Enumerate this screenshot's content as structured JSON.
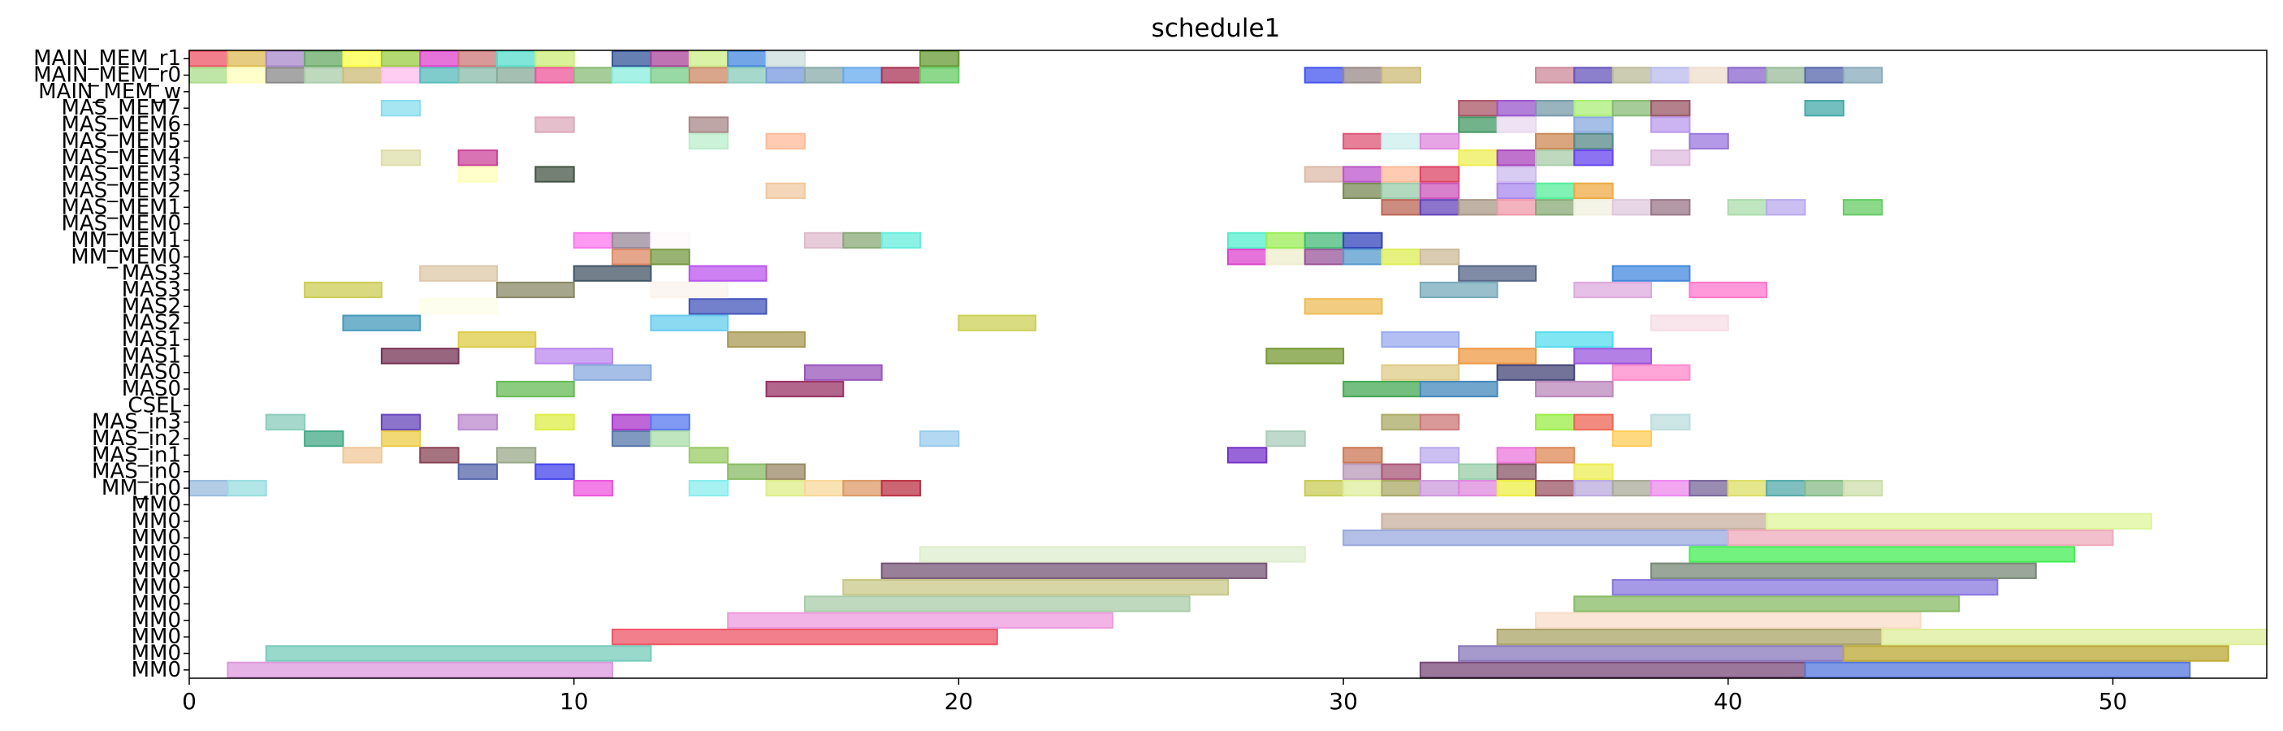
{
  "chart_data": {
    "type": "gantt",
    "title": "schedule1",
    "xlabel": "",
    "ylabel": "",
    "xlim": [
      0,
      54
    ],
    "xticks": [
      0,
      10,
      20,
      30,
      40,
      50
    ],
    "grid": false,
    "legend": "none",
    "rows": [
      "MM0",
      "MM0",
      "MM0",
      "MM0",
      "MM0",
      "MM0",
      "MM0",
      "MM0",
      "MM0",
      "MM0",
      "MM0",
      "MM_in0",
      "MAS_in0",
      "MAS_in1",
      "MAS_in2",
      "MAS_in3",
      "CSEL",
      "MAS0",
      "MAS0",
      "MAS1",
      "MAS1",
      "MAS2",
      "MAS2",
      "MAS3",
      "MAS3",
      "MM_MEM0",
      "MM_MEM1",
      "MAS_MEM0",
      "MAS_MEM1",
      "MAS_MEM2",
      "MAS_MEM3",
      "MAS_MEM4",
      "MAS_MEM5",
      "MAS_MEM6",
      "MAS_MEM7",
      "MAIN_MEM_w",
      "MAIN_MEM_r0",
      "MAIN_MEM_r1"
    ],
    "tasks": [
      [
        [
          1,
          11,
          "#dd99dd"
        ],
        [
          32,
          42,
          "#7a4a7a"
        ],
        [
          42,
          52,
          "#5577dd"
        ]
      ],
      [
        [
          2,
          12,
          "#77ccbb"
        ],
        [
          33,
          43,
          "#8877bb"
        ],
        [
          43,
          53,
          "#bba833"
        ]
      ],
      [
        [
          11,
          21,
          "#ee5566"
        ],
        [
          34,
          44,
          "#aaa466"
        ],
        [
          44,
          54,
          "#ddee99"
        ]
      ],
      [
        [
          14,
          24,
          "#ee99dd"
        ],
        [
          35,
          45,
          "#f8dcc8"
        ]
      ],
      [
        [
          16,
          26,
          "#aaccaa"
        ],
        [
          36,
          46,
          "#88bb66"
        ]
      ],
      [
        [
          17,
          27,
          "#c8c888"
        ],
        [
          37,
          47,
          "#8877dd"
        ]
      ],
      [
        [
          18,
          28,
          "#775577"
        ],
        [
          38,
          48,
          "#778877"
        ]
      ],
      [
        [
          19,
          29,
          "#ddeecc"
        ],
        [
          39,
          49,
          "#44ee55"
        ]
      ],
      [
        [
          30,
          40,
          "#99aadd"
        ],
        [
          40,
          50,
          "#eeaabb"
        ]
      ],
      [
        [
          31,
          41,
          "#c8b0a0"
        ],
        [
          41,
          51,
          "#ddf599"
        ]
      ],
      [],
      [
        [
          0,
          1,
          "#99bbdd"
        ],
        [
          1,
          2,
          "#99dddd"
        ],
        [
          10,
          11,
          "#ee55dd"
        ],
        [
          13,
          14,
          "#88eeee"
        ],
        [
          15,
          16,
          "#ddee88"
        ],
        [
          16,
          17,
          "#f8d899"
        ],
        [
          17,
          18,
          "#dd9966"
        ],
        [
          18,
          19,
          "#bb3344"
        ],
        [
          29,
          30,
          "#c8cc55"
        ],
        [
          30,
          31,
          "#ddee99"
        ],
        [
          31,
          32,
          "#aaaa66"
        ],
        [
          32,
          33,
          "#cc99dd"
        ],
        [
          33,
          34,
          "#dd88dd"
        ],
        [
          34,
          35,
          "#eeee44"
        ],
        [
          35,
          36,
          "#995566"
        ],
        [
          36,
          37,
          "#bbaadd"
        ],
        [
          37,
          38,
          "#aaaa99"
        ],
        [
          38,
          39,
          "#ee88ee"
        ],
        [
          39,
          40,
          "#776699"
        ],
        [
          40,
          41,
          "#dddd66"
        ],
        [
          41,
          42,
          "#55aaaa"
        ],
        [
          42,
          43,
          "#88bb88"
        ],
        [
          43,
          44,
          "#ccddaa"
        ]
      ],
      [
        [
          7,
          8,
          "#5566aa"
        ],
        [
          9,
          10,
          "#4444ee"
        ],
        [
          14,
          15,
          "#88bb66"
        ],
        [
          15,
          16,
          "#998866"
        ],
        [
          30,
          31,
          "#bb99bb"
        ],
        [
          31,
          32,
          "#aa5577"
        ],
        [
          33,
          34,
          "#99ccaa"
        ],
        [
          34,
          35,
          "#885566"
        ],
        [
          36,
          37,
          "#eeee55"
        ]
      ],
      [
        [
          4,
          5,
          "#f0c899"
        ],
        [
          6,
          7,
          "#884455"
        ],
        [
          8,
          9,
          "#99aa88"
        ],
        [
          13,
          14,
          "#99cc66"
        ],
        [
          27,
          28,
          "#7733cc"
        ],
        [
          30,
          31,
          "#cc7755"
        ],
        [
          32,
          33,
          "#bbaaee"
        ],
        [
          34,
          35,
          "#ee77dd"
        ],
        [
          35,
          36,
          "#dd8855"
        ]
      ],
      [
        [
          3,
          4,
          "#44aa88"
        ],
        [
          5,
          6,
          "#eecc44"
        ],
        [
          11,
          12,
          "#5577aa"
        ],
        [
          12,
          13,
          "#aaddaa"
        ],
        [
          19,
          20,
          "#99ccee"
        ],
        [
          28,
          29,
          "#aaccbb"
        ],
        [
          37,
          38,
          "#ffcc55"
        ]
      ],
      [
        [
          2,
          3,
          "#88ccbb"
        ],
        [
          5,
          6,
          "#6644bb"
        ],
        [
          7,
          8,
          "#bb88cc"
        ],
        [
          9,
          10,
          "#ddee44"
        ],
        [
          11,
          12,
          "#aa33cc"
        ],
        [
          12,
          13,
          "#5577ee"
        ],
        [
          31,
          32,
          "#aaaa66"
        ],
        [
          32,
          33,
          "#cc7777"
        ],
        [
          35,
          36,
          "#99ee44"
        ],
        [
          36,
          37,
          "#ee6655"
        ],
        [
          38,
          39,
          "#bbdddd"
        ]
      ],
      [],
      [
        [
          8,
          10,
          "#66bb55"
        ],
        [
          15,
          17,
          "#993366"
        ],
        [
          30,
          32,
          "#44aa55"
        ],
        [
          32,
          34,
          "#4488bb"
        ],
        [
          35,
          37,
          "#bb88bb"
        ]
      ],
      [
        [
          10,
          12,
          "#88aadd"
        ],
        [
          16,
          18,
          "#9955bb"
        ],
        [
          31,
          33,
          "#ddcc88"
        ],
        [
          34,
          36,
          "#444477"
        ],
        [
          37,
          39,
          "#ff88cc"
        ]
      ],
      [
        [
          5,
          7,
          "#773355"
        ],
        [
          9,
          11,
          "#bb88ee"
        ],
        [
          28,
          30,
          "#779933"
        ],
        [
          33,
          35,
          "#ee9944"
        ],
        [
          36,
          38,
          "#9955dd"
        ]
      ],
      [
        [
          7,
          9,
          "#ddcc44"
        ],
        [
          14,
          16,
          "#aa9955"
        ],
        [
          31,
          33,
          "#99aaee"
        ],
        [
          35,
          37,
          "#55ddee"
        ]
      ],
      [
        [
          4,
          6,
          "#4499bb"
        ],
        [
          12,
          14,
          "#66ccee"
        ],
        [
          20,
          22,
          "#ccd055"
        ],
        [
          38,
          40,
          "#f5dde5"
        ]
      ],
      [
        [
          6,
          8,
          "#fefee8"
        ],
        [
          13,
          15,
          "#4455bb"
        ],
        [
          29,
          31,
          "#eebb55"
        ]
      ],
      [
        [
          3,
          5,
          "#cccc55"
        ],
        [
          8,
          10,
          "#888866"
        ],
        [
          12,
          14,
          "#faf3ec"
        ],
        [
          32,
          34,
          "#77aabb"
        ],
        [
          36,
          38,
          "#ddaadd"
        ],
        [
          39,
          41,
          "#ff77cc"
        ]
      ],
      [
        [
          6,
          8,
          "#ddc8a8"
        ],
        [
          10,
          12,
          "#445566"
        ],
        [
          13,
          15,
          "#bb55ee"
        ],
        [
          33,
          35,
          "#556688"
        ],
        [
          37,
          39,
          "#4488dd"
        ]
      ],
      [
        [
          11,
          12,
          "#dd8866"
        ],
        [
          12,
          13,
          "#779944"
        ],
        [
          27,
          28,
          "#dd44cc"
        ],
        [
          28,
          29,
          "#eeeecc"
        ],
        [
          29,
          30,
          "#995599"
        ],
        [
          30,
          31,
          "#5599cc"
        ],
        [
          31,
          32,
          "#ddee55"
        ],
        [
          32,
          33,
          "#ccbb99"
        ]
      ],
      [
        [
          10,
          11,
          "#ff77ee"
        ],
        [
          11,
          12,
          "#998899"
        ],
        [
          12,
          13,
          "#fbf8f8"
        ],
        [
          16,
          17,
          "#ddbbcc"
        ],
        [
          17,
          18,
          "#88aa77"
        ],
        [
          18,
          19,
          "#66eedd"
        ],
        [
          27,
          28,
          "#55eecc"
        ],
        [
          28,
          29,
          "#99ee55"
        ],
        [
          29,
          30,
          "#44bb77"
        ],
        [
          30,
          31,
          "#3344bb"
        ]
      ],
      [],
      [
        [
          31,
          32,
          "#bb6655"
        ],
        [
          32,
          33,
          "#6644bb"
        ],
        [
          33,
          34,
          "#aa9988"
        ],
        [
          34,
          35,
          "#ee99aa"
        ],
        [
          35,
          36,
          "#88aa77"
        ],
        [
          36,
          37,
          "#f0f0dd"
        ],
        [
          37,
          38,
          "#ddc8dd"
        ],
        [
          38,
          39,
          "#997788"
        ],
        [
          40,
          41,
          "#aaddaa"
        ],
        [
          41,
          42,
          "#bbaaee"
        ],
        [
          43,
          44,
          "#66cc66"
        ]
      ],
      [
        [
          15,
          16,
          "#f0c8a0"
        ],
        [
          30,
          31,
          "#778855"
        ],
        [
          31,
          32,
          "#99ccaa"
        ],
        [
          32,
          33,
          "#cc55bb"
        ],
        [
          34,
          35,
          "#aa88ee"
        ],
        [
          35,
          36,
          "#55ee99"
        ],
        [
          36,
          37,
          "#eeaa44"
        ]
      ],
      [
        [
          7,
          8,
          "#ffffbb"
        ],
        [
          9,
          10,
          "#445544"
        ],
        [
          29,
          30,
          "#ddbbaa"
        ],
        [
          30,
          31,
          "#bb55cc"
        ],
        [
          31,
          32,
          "#ffbb99"
        ],
        [
          32,
          33,
          "#dd4466"
        ],
        [
          34,
          35,
          "#ccbbee"
        ]
      ],
      [
        [
          5,
          6,
          "#ddddaa"
        ],
        [
          7,
          8,
          "#cc4499"
        ],
        [
          33,
          34,
          "#eeee55"
        ],
        [
          34,
          35,
          "#aa44bb"
        ],
        [
          35,
          36,
          "#aaccaa"
        ],
        [
          36,
          37,
          "#6644ee"
        ],
        [
          38,
          39,
          "#ddbbdd"
        ]
      ],
      [
        [
          13,
          14,
          "#bbeecc"
        ],
        [
          15,
          16,
          "#ffbb99"
        ],
        [
          30,
          31,
          "#dd5577"
        ],
        [
          31,
          32,
          "#cceeee"
        ],
        [
          32,
          33,
          "#dd88dd"
        ],
        [
          35,
          36,
          "#cc8855"
        ],
        [
          36,
          37,
          "#558888"
        ],
        [
          39,
          40,
          "#9977dd"
        ]
      ],
      [
        [
          9,
          10,
          "#ddaabb"
        ],
        [
          13,
          14,
          "#aa8888"
        ],
        [
          33,
          34,
          "#449966"
        ],
        [
          34,
          35,
          "#e8d8f0"
        ],
        [
          36,
          37,
          "#88aadd"
        ],
        [
          38,
          39,
          "#bb99ee"
        ]
      ],
      [
        [
          5,
          6,
          "#88ddee"
        ],
        [
          33,
          34,
          "#aa5566"
        ],
        [
          34,
          35,
          "#9955cc"
        ],
        [
          35,
          36,
          "#7799aa"
        ],
        [
          36,
          37,
          "#aaee77"
        ],
        [
          37,
          38,
          "#88bb77"
        ],
        [
          38,
          39,
          "#995566"
        ],
        [
          42,
          43,
          "#44aaaa"
        ]
      ],
      [],
      [
        [
          0,
          1,
          "#aadd88"
        ],
        [
          1,
          2,
          "#ffffbb"
        ],
        [
          2,
          3,
          "#888888"
        ],
        [
          3,
          4,
          "#aaccaa"
        ],
        [
          4,
          5,
          "#ccbb77"
        ],
        [
          5,
          6,
          "#ffbbee"
        ],
        [
          6,
          7,
          "#55bbbb"
        ],
        [
          7,
          8,
          "#88bbaa"
        ],
        [
          8,
          9,
          "#88aa99"
        ],
        [
          9,
          10,
          "#ee5599"
        ],
        [
          10,
          11,
          "#88bb77"
        ],
        [
          11,
          12,
          "#88eedd"
        ],
        [
          12,
          13,
          "#77cc88"
        ],
        [
          13,
          14,
          "#cc8866"
        ],
        [
          14,
          15,
          "#88ccbb"
        ],
        [
          15,
          16,
          "#7799dd"
        ],
        [
          16,
          17,
          "#88aaaa"
        ],
        [
          17,
          18,
          "#66aaee"
        ],
        [
          18,
          19,
          "#aa3355"
        ],
        [
          19,
          20,
          "#66cc66"
        ],
        [
          29,
          30,
          "#4455ee"
        ],
        [
          30,
          31,
          "#998888"
        ],
        [
          31,
          32,
          "#ccbb77"
        ],
        [
          35,
          36,
          "#cc8899"
        ],
        [
          36,
          37,
          "#6655bb"
        ],
        [
          37,
          38,
          "#bbbb99"
        ],
        [
          38,
          39,
          "#bbbbee"
        ],
        [
          39,
          40,
          "#eeddcc"
        ],
        [
          40,
          41,
          "#8866cc"
        ],
        [
          41,
          42,
          "#99bb99"
        ],
        [
          42,
          43,
          "#5566aa"
        ],
        [
          43,
          44,
          "#88aabb"
        ]
      ],
      [
        [
          0,
          1,
          "#ee5566"
        ],
        [
          1,
          2,
          "#ddbb55"
        ],
        [
          2,
          3,
          "#aa88cc"
        ],
        [
          3,
          4,
          "#66aa66"
        ],
        [
          4,
          5,
          "#ffff44"
        ],
        [
          5,
          6,
          "#99cc44"
        ],
        [
          6,
          7,
          "#dd44cc"
        ],
        [
          7,
          8,
          "#cc7777"
        ],
        [
          8,
          9,
          "#55ddcc"
        ],
        [
          9,
          10,
          "#ccee77"
        ],
        [
          11,
          12,
          "#335599"
        ],
        [
          12,
          13,
          "#aa4499"
        ],
        [
          13,
          14,
          "#ccee88"
        ],
        [
          14,
          15,
          "#4488dd"
        ],
        [
          15,
          16,
          "#ccdddd"
        ],
        [
          19,
          20,
          "#669933"
        ]
      ]
    ]
  }
}
